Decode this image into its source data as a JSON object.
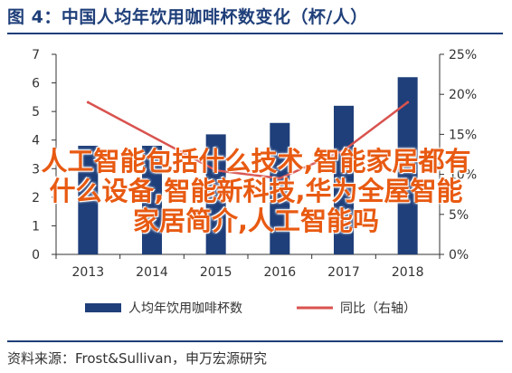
{
  "header": {
    "title": "图 4：中国人均年饮用咖啡杯数变化（杯/人）"
  },
  "footer": {
    "source": "资料来源：Frost&Sullivan，申万宏源研究"
  },
  "overlay": {
    "lines": [
      "人工智能包括什么技术,智能家居都有",
      "什么设备,智能新科技,华为全屋智能",
      "家居简介,人工智能吗"
    ]
  },
  "colors": {
    "bar": "#1f3f7a",
    "line": "#d9534f",
    "accent": "#1f3f7a",
    "overlay_text": "#e85a12"
  },
  "chart_data": {
    "type": "bar+line",
    "categories": [
      "2013",
      "2014",
      "2015",
      "2016",
      "2017",
      "2018"
    ],
    "series": [
      {
        "name": "人均年饮用咖啡杯数",
        "type": "bar",
        "axis": "left",
        "values": [
          3.8,
          3.8,
          4.2,
          4.6,
          5.2,
          6.2
        ]
      },
      {
        "name": "同比（右轴）",
        "type": "line",
        "axis": "right",
        "values": [
          0.19,
          null,
          0.105,
          0.095,
          0.13,
          0.19
        ]
      }
    ],
    "y_left": {
      "min": 0,
      "max": 7,
      "ticks": [
        "0",
        "1",
        "2",
        "3",
        "4",
        "5",
        "6",
        "7"
      ]
    },
    "y_right": {
      "min": 0,
      "max": 0.25,
      "ticks": [
        "0%",
        "5%",
        "10%",
        "15%",
        "20%",
        "25%"
      ]
    },
    "legend": {
      "position": "bottom"
    },
    "grid": false
  }
}
